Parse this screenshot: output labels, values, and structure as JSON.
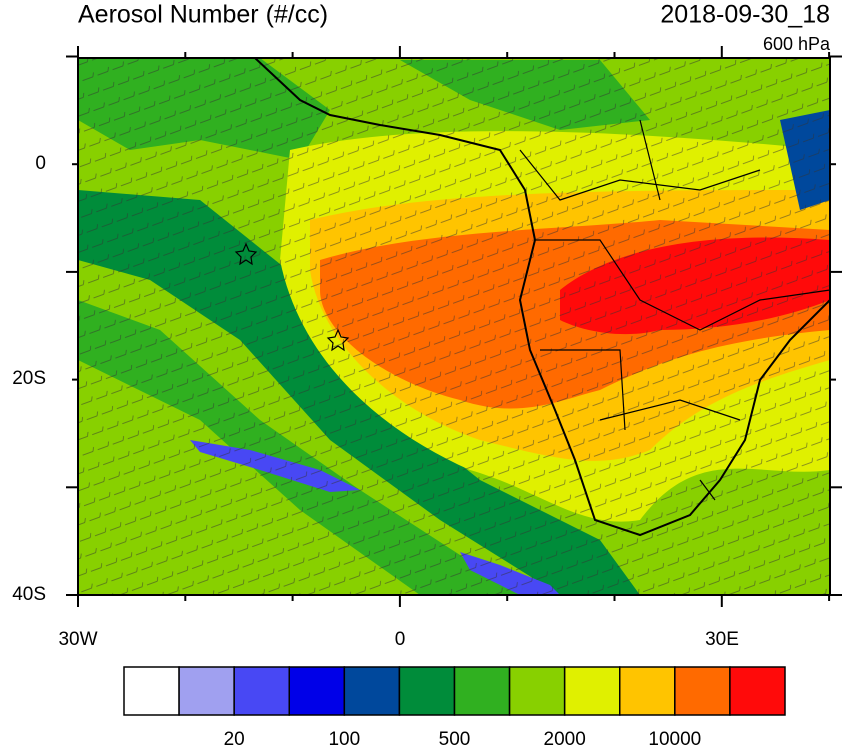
{
  "header": {
    "title": "Aerosol Number (#/cc)",
    "time": "2018-09-30_18",
    "level": "600 hPa"
  },
  "map": {
    "lat_labels": [
      "0",
      "20S",
      "40S"
    ],
    "lon_labels": [
      "30W",
      "0",
      "30E"
    ]
  },
  "colorbar": {
    "colors": [
      "#ffffff",
      "#a0a0f0",
      "#4848f4",
      "#0000e8",
      "#00489c",
      "#008c3a",
      "#30b020",
      "#88d000",
      "#e0f000",
      "#ffc400",
      "#ff6a00",
      "#ff0a0a"
    ],
    "labels": [
      20,
      100,
      500,
      2000,
      10000
    ]
  }
}
